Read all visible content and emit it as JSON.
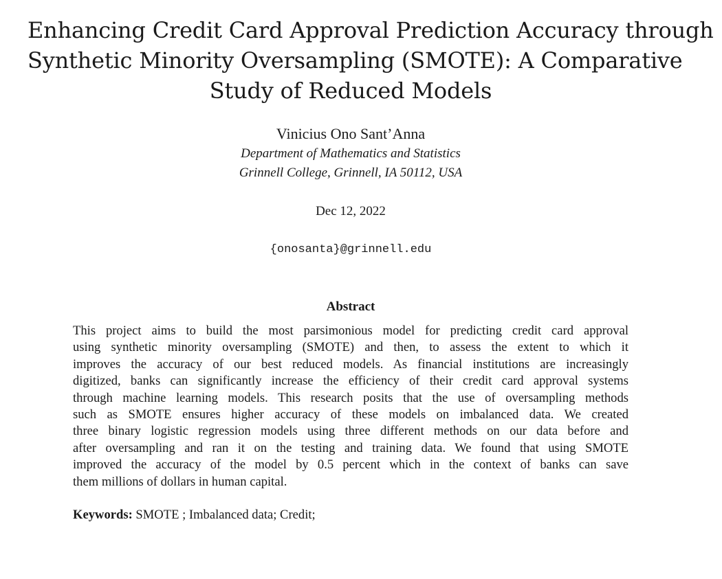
{
  "paper": {
    "title_lines": [
      "Enhancing Credit Card Approval Prediction Accuracy through",
      "Synthetic Minority Oversampling (SMOTE): A Comparative",
      "Study of Reduced Models"
    ],
    "author": "Vinicius Ono Sant’Anna",
    "affiliation_lines": [
      "Department of Mathematics and Statistics",
      "Grinnell College, Grinnell, IA 50112, USA"
    ],
    "date": "Dec 12, 2022",
    "email": "{onosanta}@grinnell.edu",
    "abstract_heading": "Abstract",
    "abstract_lines": [
      "This project aims to build the most parsimonious model for predicting credit card approval",
      "using synthetic minority oversampling (SMOTE) and then, to assess the extent to which it",
      "improves the accuracy of our best reduced models. As financial institutions are increasingly",
      "digitized, banks can significantly increase the efficiency of their credit card approval systems",
      "through machine learning models. This research posits that the use of oversampling methods",
      "such as SMOTE ensures higher accuracy of these models on imbalanced data. We created",
      "three binary logistic regression models using three different methods on our data before and",
      "after oversampling and ran it on the testing and training data. We found that using SMOTE",
      "improved the accuracy of the model by 0.5 percent which in the context of banks can save",
      "them millions of dollars in human capital."
    ],
    "keywords_label": "Keywords:",
    "keywords_text": "SMOTE ; Imbalanced data; Credit;"
  }
}
